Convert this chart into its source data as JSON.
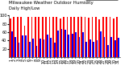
{
  "title": "Milwaukee Weather Outdoor Humidity",
  "subtitle": "Daily High/Low",
  "background_color": "#ffffff",
  "high_color": "#ff0000",
  "low_color": "#0000ff",
  "legend_high": "High",
  "legend_low": "Low",
  "ylim": [
    0,
    100
  ],
  "yticks": [
    20,
    40,
    60,
    80,
    100
  ],
  "days": [
    "1",
    "2",
    "3",
    "4",
    "5",
    "6",
    "7",
    "8",
    "9",
    "10",
    "11",
    "12",
    "13",
    "14",
    "15",
    "16",
    "17",
    "18",
    "19",
    "20",
    "21",
    "22",
    "23",
    "24",
    "25",
    "26",
    "27",
    "28",
    "29",
    "30",
    "31"
  ],
  "highs": [
    93,
    97,
    97,
    97,
    75,
    96,
    97,
    97,
    97,
    97,
    97,
    97,
    97,
    97,
    93,
    97,
    97,
    97,
    97,
    97,
    97,
    97,
    95,
    97,
    97,
    91,
    97,
    96,
    97,
    93,
    97
  ],
  "lows": [
    62,
    48,
    35,
    52,
    52,
    37,
    45,
    27,
    45,
    42,
    55,
    47,
    35,
    63,
    68,
    66,
    55,
    57,
    60,
    48,
    60,
    38,
    43,
    38,
    40,
    62,
    48,
    30,
    48,
    40,
    47
  ],
  "dotted_line_after_day": 20,
  "title_fontsize": 4.0,
  "tick_fontsize": 3.5,
  "legend_fontsize": 3.5
}
